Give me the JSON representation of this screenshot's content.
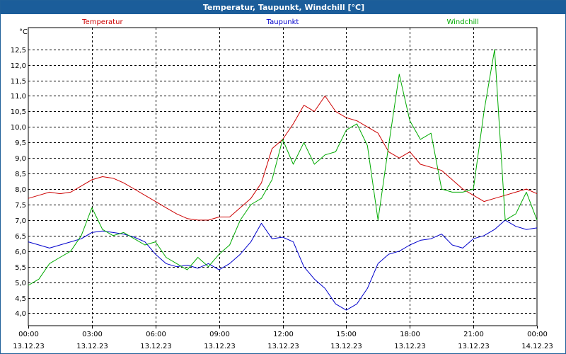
{
  "window": {
    "title": "Temperatur, Taupunkt, Windchill [°C]"
  },
  "colors": {
    "title_bg": "#1b5d9a",
    "temperature": "#cc0000",
    "dewpoint": "#0000cc",
    "windchill": "#00aa00",
    "grid": "#000000"
  },
  "chart_data": {
    "type": "line",
    "title": "Temperatur, Taupunkt, Windchill [°C]",
    "ylabel": "°C",
    "ylim": [
      3.6,
      13.2
    ],
    "xlim": [
      0,
      24
    ],
    "yticks": [
      "4,0",
      "4,5",
      "5,0",
      "5,5",
      "6,0",
      "6,5",
      "7,0",
      "7,5",
      "8,0",
      "8,5",
      "9,0",
      "9,5",
      "10,0",
      "10,5",
      "11,0",
      "11,5",
      "12,0",
      "12,5"
    ],
    "xticks": [
      {
        "value": 0,
        "time": "00:00",
        "date": "13.12.23"
      },
      {
        "value": 3,
        "time": "03:00",
        "date": "13.12.23"
      },
      {
        "value": 6,
        "time": "06:00",
        "date": "13.12.23"
      },
      {
        "value": 9,
        "time": "09:00",
        "date": "13.12.23"
      },
      {
        "value": 12,
        "time": "12:00",
        "date": "13.12.23"
      },
      {
        "value": 15,
        "time": "15:00",
        "date": "13.12.23"
      },
      {
        "value": 18,
        "time": "18:00",
        "date": "13.12.23"
      },
      {
        "value": 21,
        "time": "21:00",
        "date": "13.12.23"
      },
      {
        "value": 24,
        "time": "00:00",
        "date": "14.12.23"
      }
    ],
    "series": [
      {
        "name": "Temperatur",
        "color": "#cc0000",
        "x": [
          0,
          0.5,
          1,
          1.5,
          2,
          2.5,
          3,
          3.5,
          4,
          4.5,
          5,
          5.5,
          6,
          6.5,
          7,
          7.5,
          8,
          8.5,
          9,
          9.5,
          10,
          10.5,
          11,
          11.5,
          12,
          12.5,
          13,
          13.5,
          14,
          14.5,
          15,
          15.5,
          16,
          16.5,
          17,
          17.5,
          18,
          18.5,
          19,
          19.5,
          20,
          20.5,
          21,
          21.5,
          22,
          22.5,
          23,
          23.5,
          24
        ],
        "values": [
          7.7,
          7.8,
          7.9,
          7.85,
          7.9,
          8.1,
          8.3,
          8.4,
          8.35,
          8.2,
          8.0,
          7.8,
          7.6,
          7.4,
          7.2,
          7.05,
          7.0,
          7.0,
          7.1,
          7.1,
          7.4,
          7.7,
          8.2,
          9.3,
          9.6,
          10.1,
          10.7,
          10.5,
          11.0,
          10.5,
          10.3,
          10.2,
          10.0,
          9.8,
          9.2,
          9.0,
          9.2,
          8.8,
          8.7,
          8.6,
          8.3,
          8.0,
          7.8,
          7.6,
          7.7,
          7.8,
          7.9,
          8.0,
          7.85
        ]
      },
      {
        "name": "Taupunkt",
        "color": "#0000cc",
        "x": [
          0,
          0.5,
          1,
          1.5,
          2,
          2.5,
          3,
          3.5,
          4,
          4.5,
          5,
          5.5,
          6,
          6.5,
          7,
          7.5,
          8,
          8.5,
          9,
          9.5,
          10,
          10.5,
          11,
          11.5,
          12,
          12.5,
          13,
          13.5,
          14,
          14.5,
          15,
          15.5,
          16,
          16.5,
          17,
          17.5,
          18,
          18.5,
          19,
          19.5,
          20,
          20.5,
          21,
          21.5,
          22,
          22.5,
          23,
          23.5,
          24
        ],
        "values": [
          6.3,
          6.2,
          6.1,
          6.2,
          6.3,
          6.4,
          6.6,
          6.65,
          6.6,
          6.55,
          6.45,
          6.3,
          5.9,
          5.6,
          5.5,
          5.55,
          5.45,
          5.6,
          5.4,
          5.6,
          5.9,
          6.3,
          6.9,
          6.4,
          6.45,
          6.3,
          5.5,
          5.1,
          4.8,
          4.3,
          4.1,
          4.3,
          4.8,
          5.6,
          5.9,
          6.0,
          6.2,
          6.35,
          6.4,
          6.55,
          6.2,
          6.1,
          6.4,
          6.5,
          6.7,
          7.0,
          6.8,
          6.7,
          6.75
        ]
      },
      {
        "name": "Windchill",
        "color": "#00aa00",
        "x": [
          0,
          0.5,
          1,
          1.5,
          2,
          2.5,
          3,
          3.5,
          4,
          4.5,
          5,
          5.5,
          6,
          6.5,
          7,
          7.5,
          8,
          8.5,
          9,
          9.5,
          10,
          10.5,
          11,
          11.5,
          12,
          12.5,
          13,
          13.5,
          14,
          14.5,
          15,
          15.5,
          16,
          16.5,
          17,
          17.5,
          18,
          18.5,
          19,
          19.5,
          20,
          20.5,
          21,
          21.5,
          22,
          22.5,
          23,
          23.5,
          24
        ],
        "values": [
          4.9,
          5.1,
          5.6,
          5.8,
          6.0,
          6.5,
          7.4,
          6.7,
          6.5,
          6.6,
          6.4,
          6.2,
          6.3,
          5.8,
          5.6,
          5.4,
          5.8,
          5.5,
          5.9,
          6.2,
          7.0,
          7.5,
          7.7,
          8.3,
          9.6,
          8.8,
          9.5,
          8.8,
          9.1,
          9.2,
          9.9,
          10.1,
          9.4,
          7.0,
          9.4,
          11.7,
          10.2,
          9.6,
          9.8,
          8.0,
          7.9,
          7.9,
          8.0,
          10.5,
          12.5,
          7.0,
          7.2,
          7.9,
          7.0
        ]
      }
    ]
  }
}
